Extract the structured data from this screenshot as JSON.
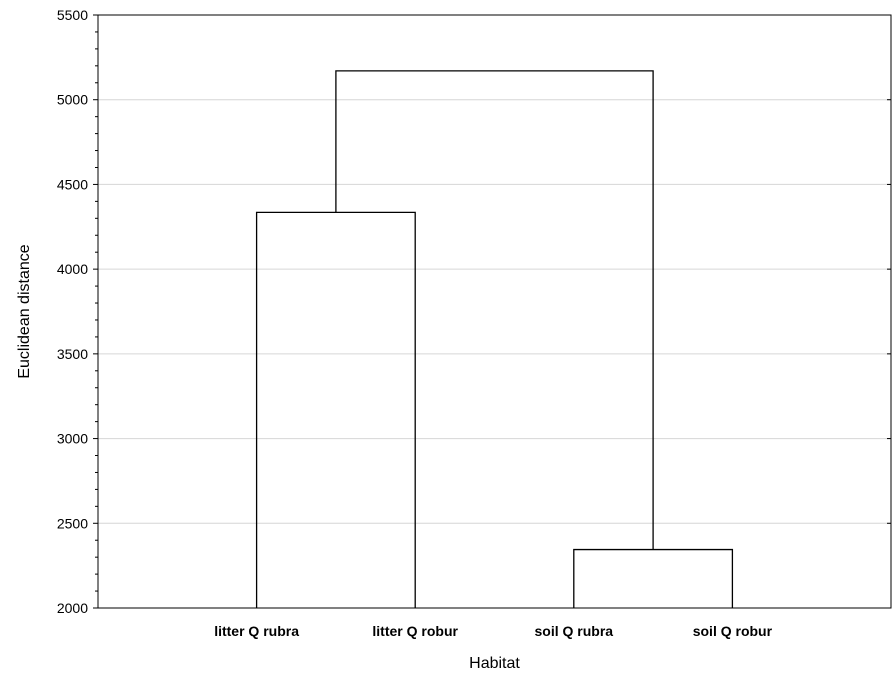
{
  "chart_data": {
    "type": "dendrogram",
    "title": "",
    "xlabel": "Habitat",
    "ylabel": "Euclidean distance",
    "ylim": [
      2000,
      5500
    ],
    "yticks": [
      2000,
      2500,
      3000,
      3500,
      4000,
      4500,
      5000,
      5500
    ],
    "grid": true,
    "leaves": [
      "litter Q rubra",
      "litter Q robur",
      "soil Q rubra",
      "soil Q robur"
    ],
    "merges": [
      {
        "left": "litter Q rubra",
        "right": "litter Q robur",
        "height": 4335
      },
      {
        "left": "soil Q rubra",
        "right": "soil Q robur",
        "height": 2345
      },
      {
        "left": "litter Q rubra + litter Q robur",
        "right": "soil Q rubra + soil Q robur",
        "height": 5170
      }
    ]
  }
}
